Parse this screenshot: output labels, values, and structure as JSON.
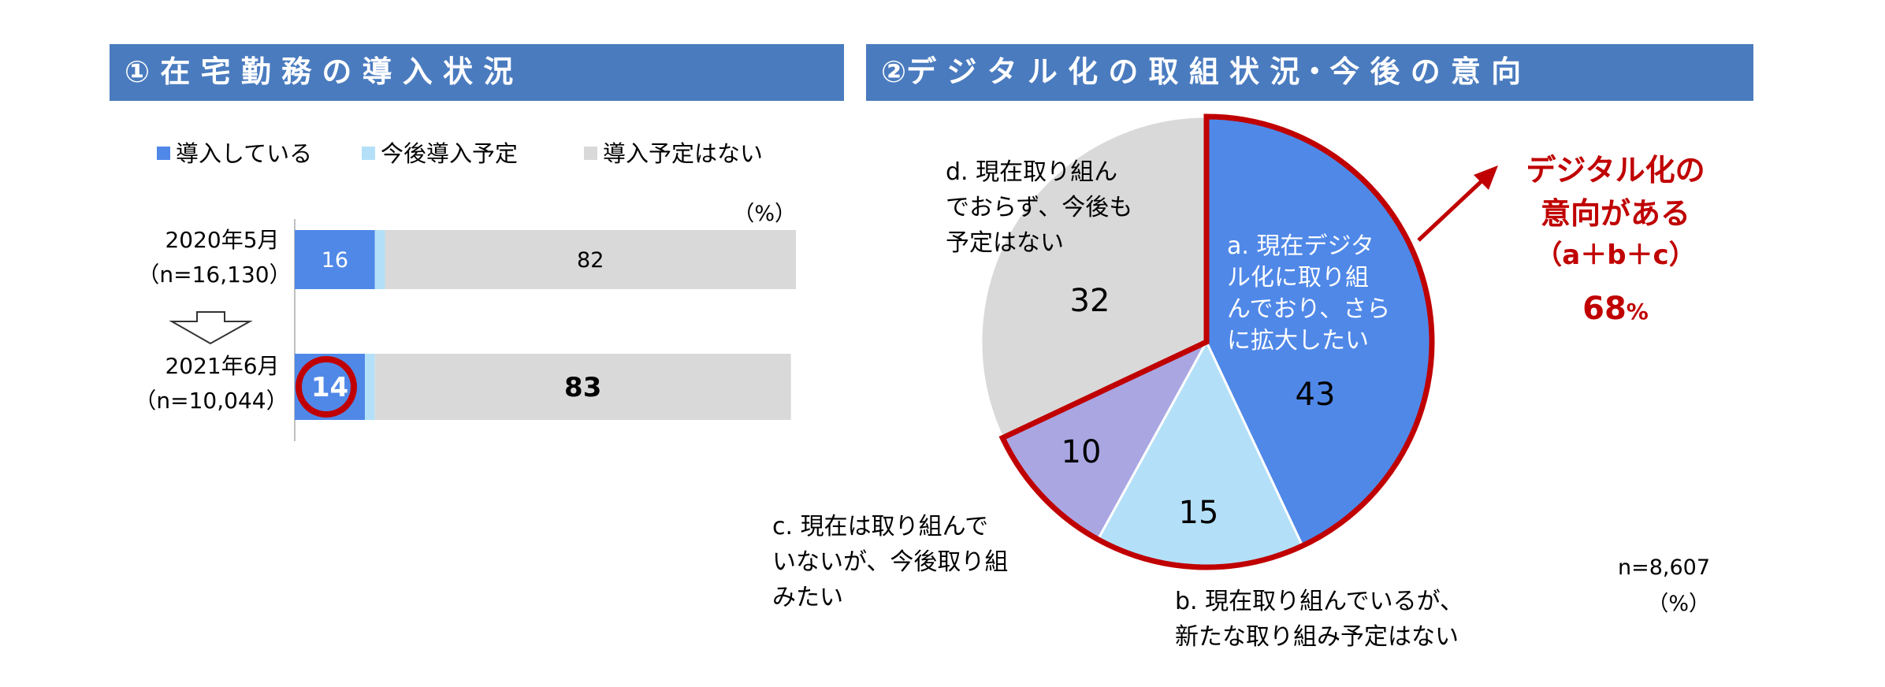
{
  "left_panel": {
    "title": "① 在 宅 勤 務 の 導 入 状 況",
    "unit": "（%）"
  },
  "right_panel": {
    "title": "②デ ジ タ ル 化 の 取 組 状 況・今 後 の 意 向",
    "sample": "n=8,607",
    "unit": "（%）",
    "callout": {
      "line1": "デジタル化の",
      "line2": "意向がある",
      "line3": "（a＋b＋c）",
      "value": "68",
      "value_unit": "%"
    }
  },
  "colors": {
    "header_bg": "#4a7bbf",
    "blue": "#5088e8",
    "light_blue": "#b3e0f8",
    "gray": "#d9d9d9",
    "lavender": "#a9a6e2",
    "red": "#c00000",
    "white": "#ffffff"
  },
  "chart_data": [
    {
      "type": "bar",
      "orientation": "horizontal",
      "stacked": true,
      "legend_position": "top",
      "categories": [
        [
          "2020年5月",
          "（n=16,130）"
        ],
        [
          "2021年6月",
          "（n=10,044）"
        ]
      ],
      "series": [
        {
          "name": "導入している",
          "values": [
            16,
            14
          ]
        },
        {
          "name": "今後導入予定",
          "values": [
            2,
            2
          ]
        },
        {
          "name": "導入予定はない",
          "values": [
            82,
            83
          ]
        }
      ],
      "xlim": [
        0,
        100
      ]
    },
    {
      "type": "pie",
      "slices": [
        {
          "key": "a",
          "value": 43,
          "label": [
            "a. 現在デジタ",
            "ル化に取り組",
            "んでおり、さら",
            "に拡大したい"
          ]
        },
        {
          "key": "b",
          "value": 15,
          "label": [
            "b. 現在取り組んでいるが、",
            "新たな取り組み予定はない"
          ]
        },
        {
          "key": "c",
          "value": 10,
          "label": [
            "c. 現在は取り組んで",
            "いないが、今後取り組",
            "みたい"
          ]
        },
        {
          "key": "d",
          "value": 32,
          "label": [
            "d. 現在取り組ん",
            "でおらず、今後も",
            "予定はない"
          ]
        }
      ]
    }
  ]
}
